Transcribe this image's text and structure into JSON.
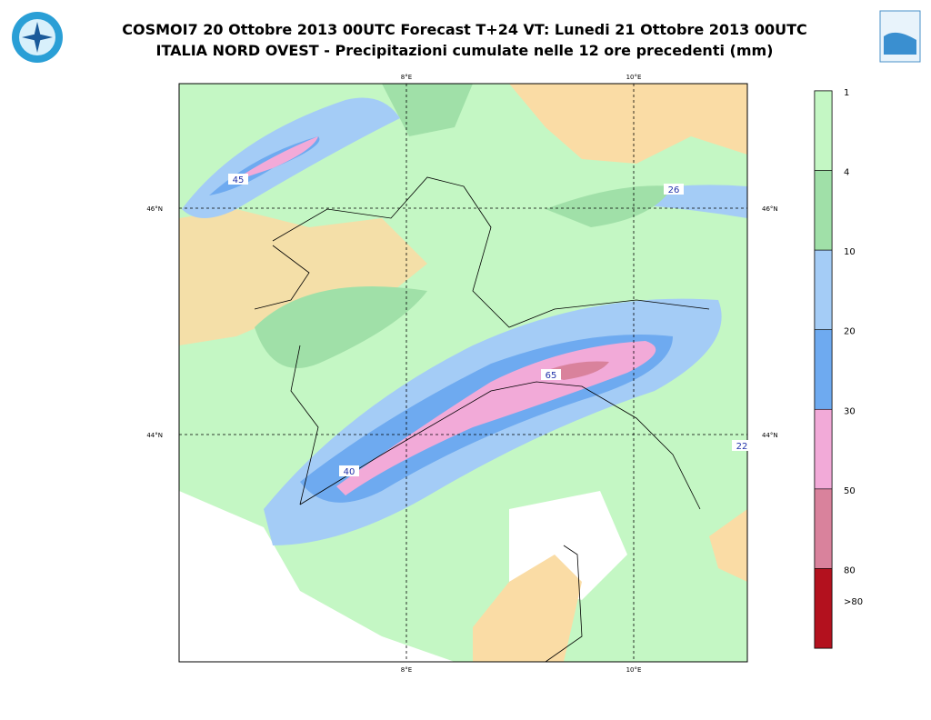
{
  "header": {
    "title_lines": [
      "COSMOI7 20 Ottobre 2013 00UTC Forecast T+24 VT: Lunedi 21 Ottobre 2013 00UTC",
      "ITALIA NORD OVEST - Precipitazioni cumulate nelle 12 ore precedenti (mm)"
    ]
  },
  "map": {
    "lon_labels": [
      "8°E",
      "10°E"
    ],
    "lat_labels": [
      "46°N",
      "44°N"
    ],
    "value_labels": [
      "45",
      "26",
      "65",
      "22",
      "40"
    ]
  },
  "legend": {
    "labels": [
      "1",
      "4",
      "10",
      "20",
      "30",
      "50",
      "80",
      ">80"
    ],
    "colors": [
      "#c4f7c4",
      "#a0e0a8",
      "#a4ccf6",
      "#6eaaf0",
      "#f2aad8",
      "#d9829c",
      "#b3111e"
    ]
  }
}
